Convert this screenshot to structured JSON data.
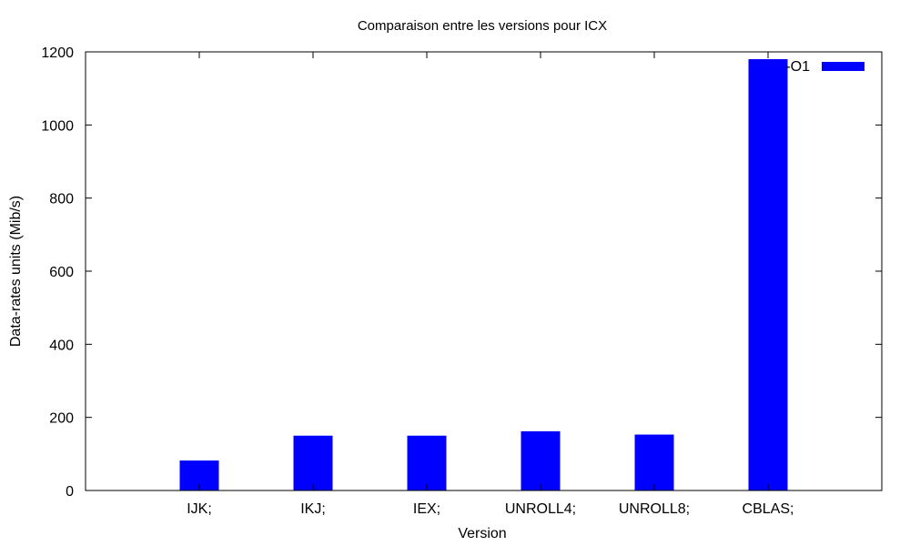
{
  "chart_data": {
    "type": "bar",
    "title": "Comparaison entre les versions pour ICX",
    "xlabel": "Version",
    "ylabel": "Data-rates units (Mib/s)",
    "categories": [
      "IJK;",
      "IKJ;",
      "IEX;",
      "UNROLL4;",
      "UNROLL8;",
      "CBLAS;"
    ],
    "series": [
      {
        "name": "-O1",
        "values": [
          82,
          150,
          150,
          162,
          153,
          1180
        ]
      }
    ],
    "ylim": [
      0,
      1200
    ],
    "yticks": [
      0,
      200,
      400,
      600,
      800,
      1000,
      1200
    ],
    "grid": false,
    "legend_position": "top-right",
    "colors": {
      "series": "#0000ff",
      "axis": "#000000"
    }
  }
}
